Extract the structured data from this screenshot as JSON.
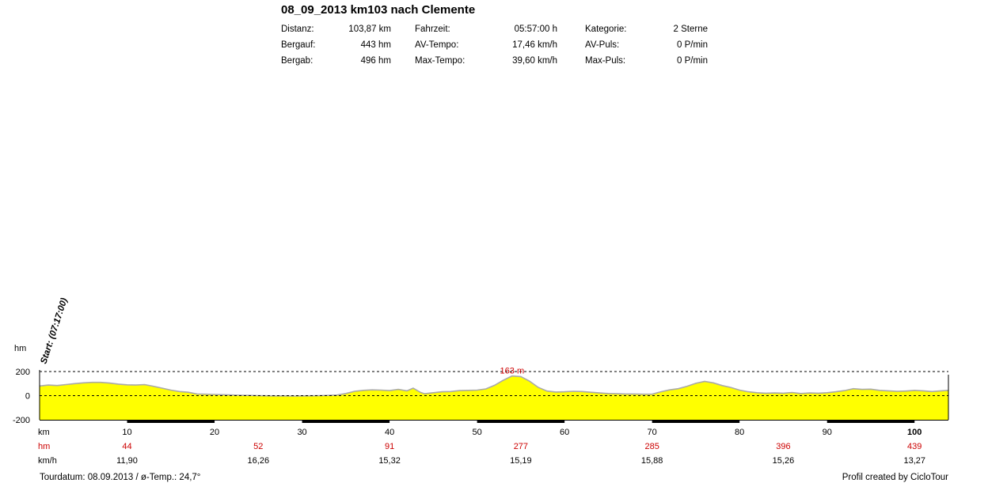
{
  "title": "08_09_2013 km103 nach Clemente",
  "stats": [
    {
      "l1": "Distanz:",
      "v1": "103,87 km",
      "l2": "Fahrzeit:",
      "v2": "05:57:00 h",
      "l3": "Kategorie:",
      "v3": "2 Sterne"
    },
    {
      "l1": "Bergauf:",
      "v1": "443 hm",
      "l2": "AV-Tempo:",
      "v2": "17,46 km/h",
      "l3": "AV-Puls:",
      "v3": "0 P/min"
    },
    {
      "l1": "Bergab:",
      "v1": "496 hm",
      "l2": "Max-Tempo:",
      "v2": "39,60 km/h",
      "l3": "Max-Puls:",
      "v3": "0 P/min"
    }
  ],
  "chart_data": {
    "type": "area",
    "ylabel": "hm",
    "xlabel": "km",
    "xlim": [
      0,
      103.87
    ],
    "ylim": [
      -200,
      200
    ],
    "yticks": [
      200,
      0,
      -200
    ],
    "xticks": [
      10,
      20,
      30,
      40,
      50,
      60,
      70,
      80,
      90,
      100
    ],
    "start_label": "Start: (07:17:00)",
    "max_label": "163 m",
    "max_km": 54,
    "max_value": 163,
    "fill_color": "#ffff00",
    "profile_color": "#a9a9a9",
    "label_color": "#cc0000",
    "profile": [
      [
        0,
        80
      ],
      [
        1,
        88
      ],
      [
        2,
        84
      ],
      [
        3,
        92
      ],
      [
        4,
        100
      ],
      [
        5,
        106
      ],
      [
        6,
        110
      ],
      [
        7,
        110
      ],
      [
        8,
        104
      ],
      [
        9,
        96
      ],
      [
        10,
        90
      ],
      [
        11,
        88
      ],
      [
        12,
        92
      ],
      [
        13,
        78
      ],
      [
        14,
        62
      ],
      [
        15,
        46
      ],
      [
        16,
        34
      ],
      [
        17,
        28
      ],
      [
        18,
        14
      ],
      [
        19,
        12
      ],
      [
        20,
        10
      ],
      [
        21,
        8
      ],
      [
        22,
        5
      ],
      [
        23,
        3
      ],
      [
        24,
        2
      ],
      [
        25,
        0
      ],
      [
        26,
        -1
      ],
      [
        27,
        -2
      ],
      [
        28,
        -2
      ],
      [
        29,
        -3
      ],
      [
        30,
        -2
      ],
      [
        31,
        -1
      ],
      [
        32,
        0
      ],
      [
        33,
        2
      ],
      [
        34,
        5
      ],
      [
        35,
        18
      ],
      [
        36,
        36
      ],
      [
        37,
        44
      ],
      [
        38,
        48
      ],
      [
        39,
        46
      ],
      [
        40,
        42
      ],
      [
        41,
        52
      ],
      [
        42,
        40
      ],
      [
        42.7,
        62
      ],
      [
        43.5,
        28
      ],
      [
        44,
        16
      ],
      [
        45,
        24
      ],
      [
        46,
        32
      ],
      [
        47,
        34
      ],
      [
        48,
        42
      ],
      [
        49,
        44
      ],
      [
        50,
        46
      ],
      [
        51,
        56
      ],
      [
        52,
        86
      ],
      [
        53,
        128
      ],
      [
        54,
        163
      ],
      [
        55,
        158
      ],
      [
        56,
        120
      ],
      [
        57,
        68
      ],
      [
        58,
        38
      ],
      [
        59,
        30
      ],
      [
        60,
        32
      ],
      [
        61,
        36
      ],
      [
        62,
        34
      ],
      [
        63,
        28
      ],
      [
        64,
        22
      ],
      [
        65,
        18
      ],
      [
        66,
        16
      ],
      [
        67,
        14
      ],
      [
        68,
        14
      ],
      [
        69,
        12
      ],
      [
        70,
        12
      ],
      [
        71,
        32
      ],
      [
        72,
        48
      ],
      [
        73,
        58
      ],
      [
        74,
        78
      ],
      [
        75,
        102
      ],
      [
        76,
        118
      ],
      [
        77,
        106
      ],
      [
        78,
        84
      ],
      [
        79,
        68
      ],
      [
        80,
        46
      ],
      [
        81,
        32
      ],
      [
        82,
        24
      ],
      [
        83,
        20
      ],
      [
        84,
        22
      ],
      [
        85,
        20
      ],
      [
        86,
        26
      ],
      [
        87,
        18
      ],
      [
        88,
        22
      ],
      [
        89,
        20
      ],
      [
        90,
        24
      ],
      [
        91,
        32
      ],
      [
        92,
        42
      ],
      [
        93,
        58
      ],
      [
        94,
        52
      ],
      [
        95,
        54
      ],
      [
        96,
        44
      ],
      [
        97,
        40
      ],
      [
        98,
        36
      ],
      [
        99,
        38
      ],
      [
        100,
        44
      ],
      [
        101,
        40
      ],
      [
        102,
        34
      ],
      [
        103,
        40
      ],
      [
        103.87,
        44
      ]
    ],
    "black_segments": [
      [
        10,
        20
      ],
      [
        30,
        40
      ],
      [
        50,
        60
      ],
      [
        70,
        80
      ],
      [
        90,
        100
      ]
    ],
    "hm_row": [
      {
        "km": 10,
        "v": "44"
      },
      {
        "km": 25,
        "v": "52"
      },
      {
        "km": 40,
        "v": "91"
      },
      {
        "km": 55,
        "v": "277"
      },
      {
        "km": 70,
        "v": "285"
      },
      {
        "km": 85,
        "v": "396"
      },
      {
        "km": 100,
        "v": "439"
      }
    ],
    "kmh_row": [
      {
        "km": 10,
        "v": "11,90"
      },
      {
        "km": 25,
        "v": "16,26"
      },
      {
        "km": 40,
        "v": "15,32"
      },
      {
        "km": 55,
        "v": "15,19"
      },
      {
        "km": 70,
        "v": "15,88"
      },
      {
        "km": 85,
        "v": "15,26"
      },
      {
        "km": 100,
        "v": "13,27"
      }
    ],
    "row_labels": {
      "km": "km",
      "hm": "hm",
      "kmh": "km/h"
    }
  },
  "footer": {
    "left": "Tourdatum: 08.09.2013  /  ø-Temp.: 24,7°",
    "right": "Profil created by CicloTour"
  }
}
